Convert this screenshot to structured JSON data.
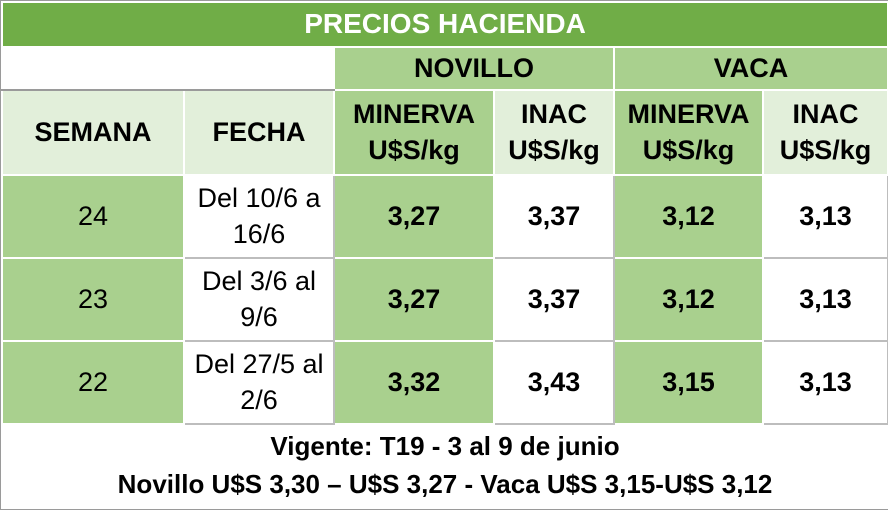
{
  "table": {
    "title": "PRECIOS HACIENDA",
    "groups": [
      "NOVILLO",
      "VACA"
    ],
    "header": [
      "SEMANA",
      "FECHA",
      "MINERVA U$S/kg",
      "INAC U$S/kg",
      "MINERVA U$S/kg",
      "INAC U$S/kg"
    ],
    "rows": [
      [
        "24",
        "Del 10/6 a 16/6",
        "3,27",
        "3,37",
        "3,12",
        "3,13"
      ],
      [
        "23",
        "Del 3/6 al 9/6",
        "3,27",
        "3,37",
        "3,12",
        "3,13"
      ],
      [
        "22",
        "Del 27/5 al 2/6",
        "3,32",
        "3,43",
        "3,15",
        "3,13"
      ]
    ],
    "footer": [
      "Vigente: T19 - 3 al 9 de junio",
      "Novillo U$S 3,30 – U$S 3,27 - Vaca U$S 3,15-U$S 3,12"
    ]
  }
}
